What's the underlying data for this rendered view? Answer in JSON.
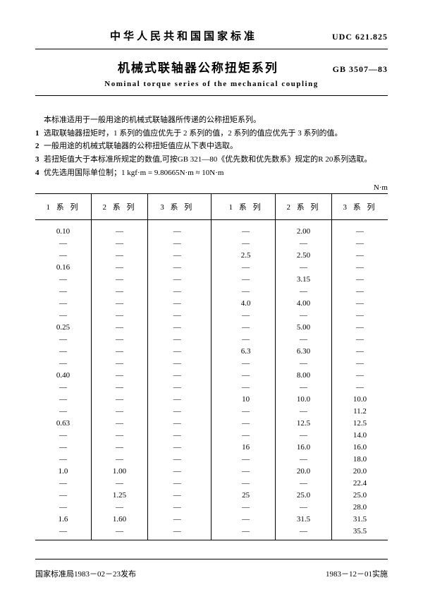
{
  "header": {
    "country_std": "中华人民共和国国家标准",
    "udc": "UDC 621.825",
    "gb": "GB 3507—83"
  },
  "titles": {
    "zh": "机械式联轴器公称扭矩系列",
    "en": "Nominal torque series of the mechanical coupling"
  },
  "notes": {
    "intro": "本标准适用于一般用途的机械式联轴器所传递的公称扭矩系列。",
    "items": [
      "选取联轴器扭矩时，1 系列的值应优先于 2 系列的值，2 系列的值应优先于 3 系列的值。",
      "一般用途的机械式联轴器的公称扭矩值应从下表中选取。",
      "若扭矩值大于本标准所规定的数值,可按GB 321—80《优先数和优先数系》规定的R 20系列选取。",
      "优先选用国际单位制；1 kgf·m = 9.80665N·m ≈ 10N·m"
    ]
  },
  "table": {
    "unit": "N·m",
    "headers": [
      "1 系 列",
      "2 系 列",
      "3 系 列",
      "1 系 列",
      "2 系 列",
      "3 系 列"
    ],
    "rows": [
      [
        "0.10",
        "—",
        "—",
        "—",
        "2.00",
        "—"
      ],
      [
        "—",
        "—",
        "—",
        "—",
        "—",
        "—"
      ],
      [
        "—",
        "—",
        "—",
        "2.5",
        "2.50",
        "—"
      ],
      [
        "0.16",
        "—",
        "—",
        "—",
        "—",
        "—"
      ],
      [
        "—",
        "—",
        "—",
        "—",
        "3.15",
        "—"
      ],
      [
        "—",
        "—",
        "—",
        "—",
        "—",
        "—"
      ],
      [
        "—",
        "—",
        "—",
        "4.0",
        "4.00",
        "—"
      ],
      [
        "—",
        "—",
        "—",
        "—",
        "—",
        "—"
      ],
      [
        "0.25",
        "—",
        "—",
        "—",
        "5.00",
        "—"
      ],
      [
        "—",
        "—",
        "—",
        "—",
        "—",
        "—"
      ],
      [
        "—",
        "—",
        "—",
        "6.3",
        "6.30",
        "—"
      ],
      [
        "—",
        "—",
        "—",
        "—",
        "—",
        "—"
      ],
      [
        "0.40",
        "—",
        "—",
        "—",
        "8.00",
        "—"
      ],
      [
        "—",
        "—",
        "—",
        "—",
        "—",
        "—"
      ],
      [
        "—",
        "—",
        "—",
        "10",
        "10.0",
        "10.0"
      ],
      [
        "—",
        "—",
        "—",
        "—",
        "—",
        "11.2"
      ],
      [
        "0.63",
        "—",
        "—",
        "—",
        "12.5",
        "12.5"
      ],
      [
        "—",
        "—",
        "—",
        "—",
        "—",
        "14.0"
      ],
      [
        "—",
        "—",
        "—",
        "16",
        "16.0",
        "16.0"
      ],
      [
        "—",
        "—",
        "—",
        "—",
        "—",
        "18.0"
      ],
      [
        "1.0",
        "1.00",
        "—",
        "—",
        "20.0",
        "20.0"
      ],
      [
        "—",
        "—",
        "—",
        "—",
        "—",
        "22.4"
      ],
      [
        "—",
        "1.25",
        "—",
        "25",
        "25.0",
        "25.0"
      ],
      [
        "—",
        "—",
        "—",
        "—",
        "—",
        "28.0"
      ],
      [
        "1.6",
        "1.60",
        "—",
        "—",
        "31.5",
        "31.5"
      ],
      [
        "—",
        "—",
        "—",
        "—",
        "—",
        "35.5"
      ]
    ]
  },
  "footer": {
    "issue": "国家标准局1983－02－23发布",
    "effective": "1983－12－01实施"
  }
}
